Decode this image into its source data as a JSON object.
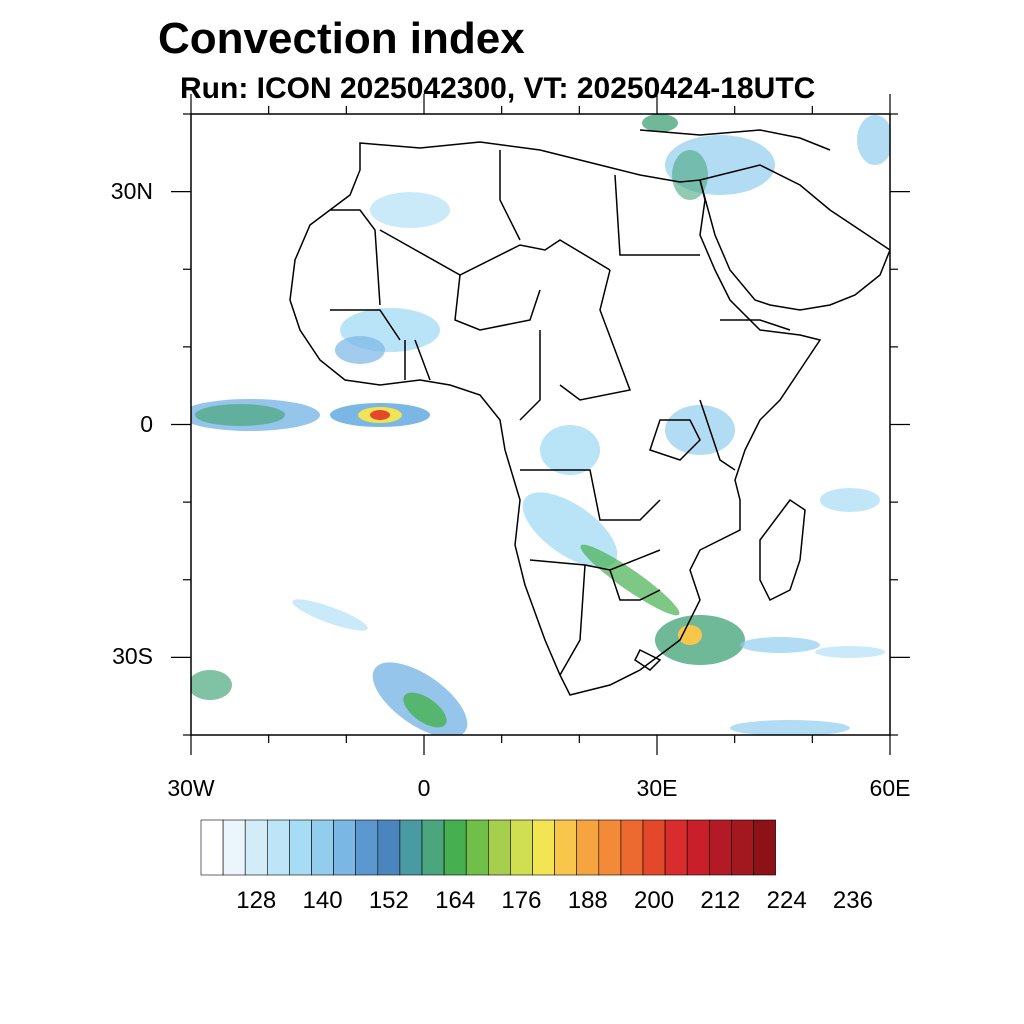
{
  "title": "Convection index",
  "subtitle": "Run: ICON 2025042300,  VT: 20250424-18UTC",
  "map": {
    "lon_range": [
      -30,
      60
    ],
    "lat_range": [
      -40,
      40
    ],
    "lat_ticks": [
      {
        "value": 30,
        "label": "30N"
      },
      {
        "value": 0,
        "label": "0"
      },
      {
        "value": -30,
        "label": "30S"
      }
    ],
    "lon_ticks": [
      {
        "value": -30,
        "label": "30W"
      },
      {
        "value": 0,
        "label": "0"
      },
      {
        "value": 30,
        "label": "30E"
      },
      {
        "value": 60,
        "label": "60E"
      }
    ],
    "land_color": "#ffffff",
    "border_color": "#000000"
  },
  "colorbar": {
    "colors": [
      "#ffffff",
      "#eaf6fc",
      "#d2ecf8",
      "#bde4f7",
      "#a7dcf5",
      "#92cdee",
      "#7ab7e5",
      "#5a98cf",
      "#4a85bd",
      "#4a9aa3",
      "#4ba67e",
      "#46b050",
      "#6fbf48",
      "#a6cf4d",
      "#d0de52",
      "#f2e452",
      "#f8c64b",
      "#f6a43f",
      "#f28a37",
      "#ec6a30",
      "#e4482b",
      "#d92c2c",
      "#c81f2b",
      "#b41a26",
      "#a3171f",
      "#8c1218"
    ],
    "labels": [
      "128",
      "140",
      "152",
      "164",
      "176",
      "188",
      "200",
      "212",
      "224",
      "236"
    ]
  }
}
